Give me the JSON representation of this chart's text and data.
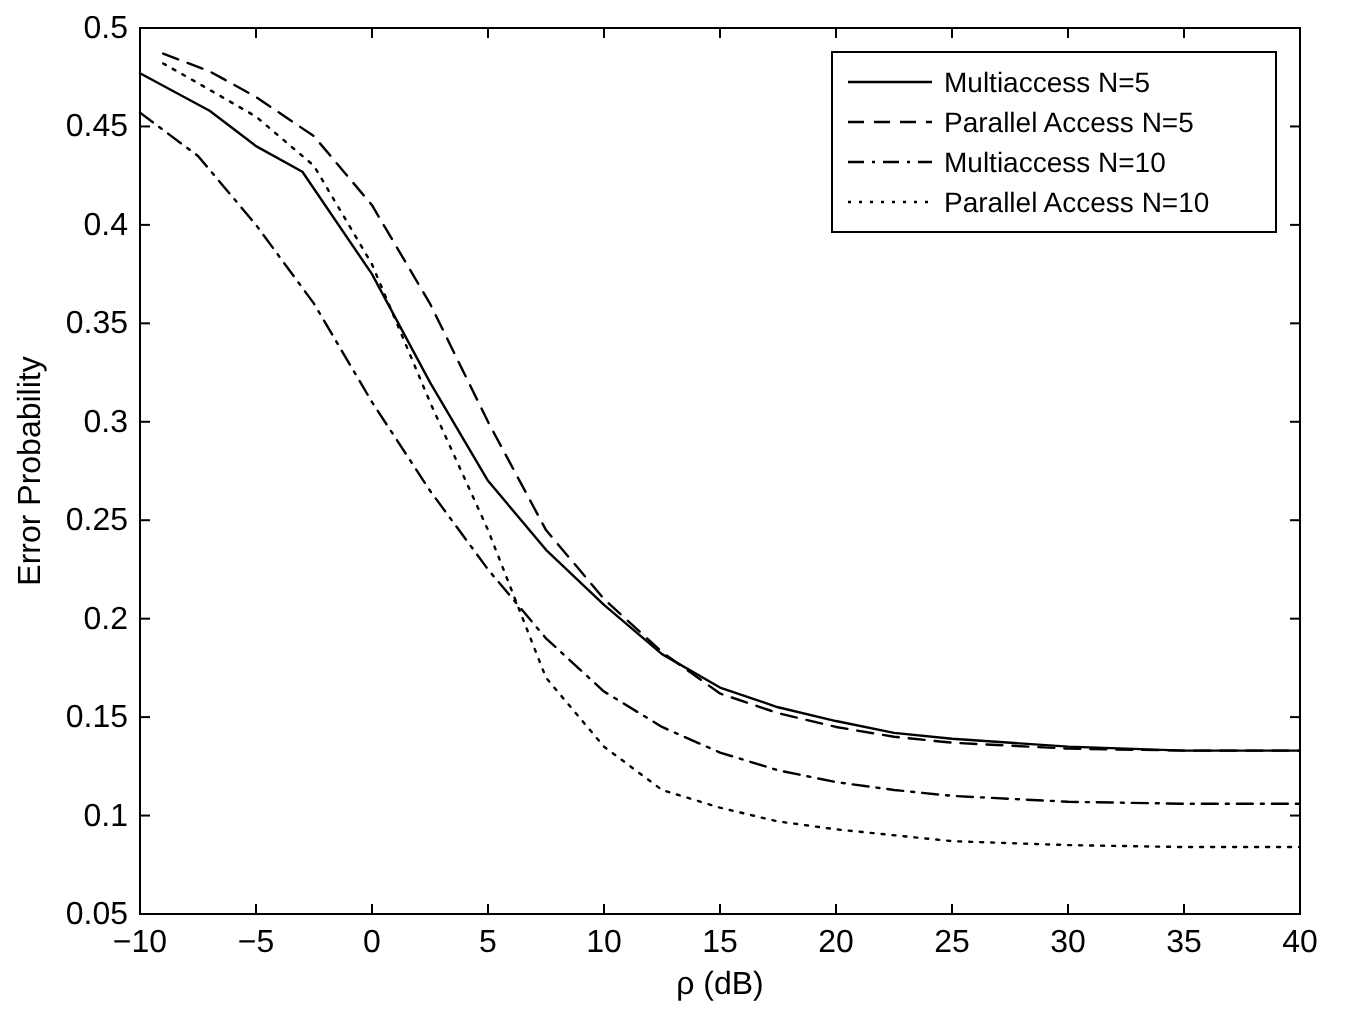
{
  "chart_data": {
    "type": "line",
    "xlabel": "ρ (dB)",
    "ylabel": "Error Probability",
    "xlim": [
      -10,
      40
    ],
    "ylim": [
      0.05,
      0.5
    ],
    "xticks": [
      {
        "value": -10,
        "label": "−10"
      },
      {
        "value": -5,
        "label": "−5"
      },
      0,
      5,
      10,
      15,
      20,
      25,
      30,
      35,
      40
    ],
    "yticks": [
      0.05,
      0.1,
      0.15,
      0.2,
      0.25,
      0.3,
      0.35,
      0.4,
      0.45,
      0.5
    ],
    "grid": false,
    "legend": "top right",
    "series": [
      {
        "name": "Multiaccess N=5",
        "color": "#000000",
        "line_style": "solid",
        "x": [
          -10,
          -7,
          -5,
          -3,
          0,
          2.5,
          5,
          7.5,
          10,
          12.5,
          15,
          17.5,
          20,
          22.5,
          25,
          30,
          35,
          40
        ],
        "values": [
          0.477,
          0.458,
          0.44,
          0.427,
          0.375,
          0.32,
          0.27,
          0.235,
          0.207,
          0.182,
          0.165,
          0.155,
          0.148,
          0.142,
          0.139,
          0.135,
          0.133,
          0.133
        ]
      },
      {
        "name": "Parallel Access N=5",
        "color": "#000000",
        "line_style": "dashed",
        "x": [
          -9,
          -7,
          -5,
          -2.5,
          0,
          2.5,
          5,
          7.5,
          10,
          12.5,
          15,
          17.5,
          20,
          22.5,
          25,
          30,
          35,
          40
        ],
        "values": [
          0.487,
          0.478,
          0.465,
          0.445,
          0.41,
          0.36,
          0.3,
          0.245,
          0.21,
          0.183,
          0.162,
          0.152,
          0.145,
          0.14,
          0.137,
          0.134,
          0.133,
          0.133
        ]
      },
      {
        "name": "Multiaccess N=10",
        "color": "#000000",
        "line_style": "dashdot",
        "x": [
          -10,
          -7.5,
          -5,
          -2.5,
          0,
          2.5,
          5,
          7.5,
          10,
          12.5,
          15,
          17.5,
          20,
          22.5,
          25,
          30,
          35,
          40
        ],
        "values": [
          0.457,
          0.435,
          0.4,
          0.36,
          0.31,
          0.265,
          0.225,
          0.19,
          0.163,
          0.145,
          0.132,
          0.123,
          0.117,
          0.113,
          0.11,
          0.107,
          0.106,
          0.106
        ]
      },
      {
        "name": "Parallel Access N=10",
        "color": "#000000",
        "line_style": "dotted",
        "x": [
          -9,
          -7.5,
          -5,
          -2.5,
          0,
          2.5,
          5,
          7.5,
          10,
          12.5,
          15,
          17.5,
          20,
          22.5,
          25,
          30,
          35,
          40
        ],
        "values": [
          0.482,
          0.472,
          0.455,
          0.43,
          0.38,
          0.31,
          0.245,
          0.17,
          0.135,
          0.113,
          0.104,
          0.097,
          0.093,
          0.09,
          0.087,
          0.085,
          0.084,
          0.084
        ]
      }
    ]
  }
}
